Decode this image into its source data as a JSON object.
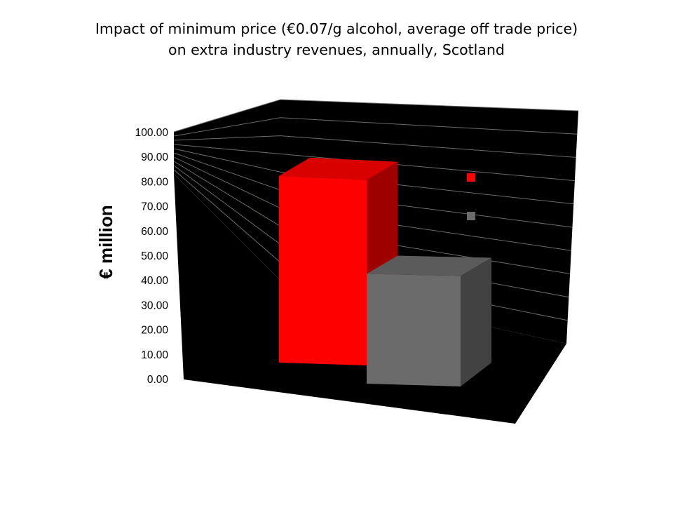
{
  "title_lines": [
    "Impact of  minimum price (€0.07/g alcohol,  average off trade price)",
    "on extra industry revenues, annually, Scotland"
  ],
  "chart_data": {
    "type": "bar",
    "style": "3d",
    "title": "Impact of  minimum price (€0.07/g alcohol,  average off trade price) on extra industry revenues, annually, Scotland",
    "ylabel": "€ million",
    "xlabel": "",
    "ylim": [
      0,
      100
    ],
    "yticks": [
      "0.00",
      "10.00",
      "20.00",
      "30.00",
      "40.00",
      "50.00",
      "60.00",
      "70.00",
      "80.00",
      "90.00",
      "100.00"
    ],
    "grid": true,
    "legend_position": "right",
    "series": [
      {
        "values": [
          80
        ],
        "color": "#ff0000"
      },
      {
        "values": [
          43
        ],
        "color": "#6b6b6b"
      }
    ],
    "background_color": "#000000"
  }
}
